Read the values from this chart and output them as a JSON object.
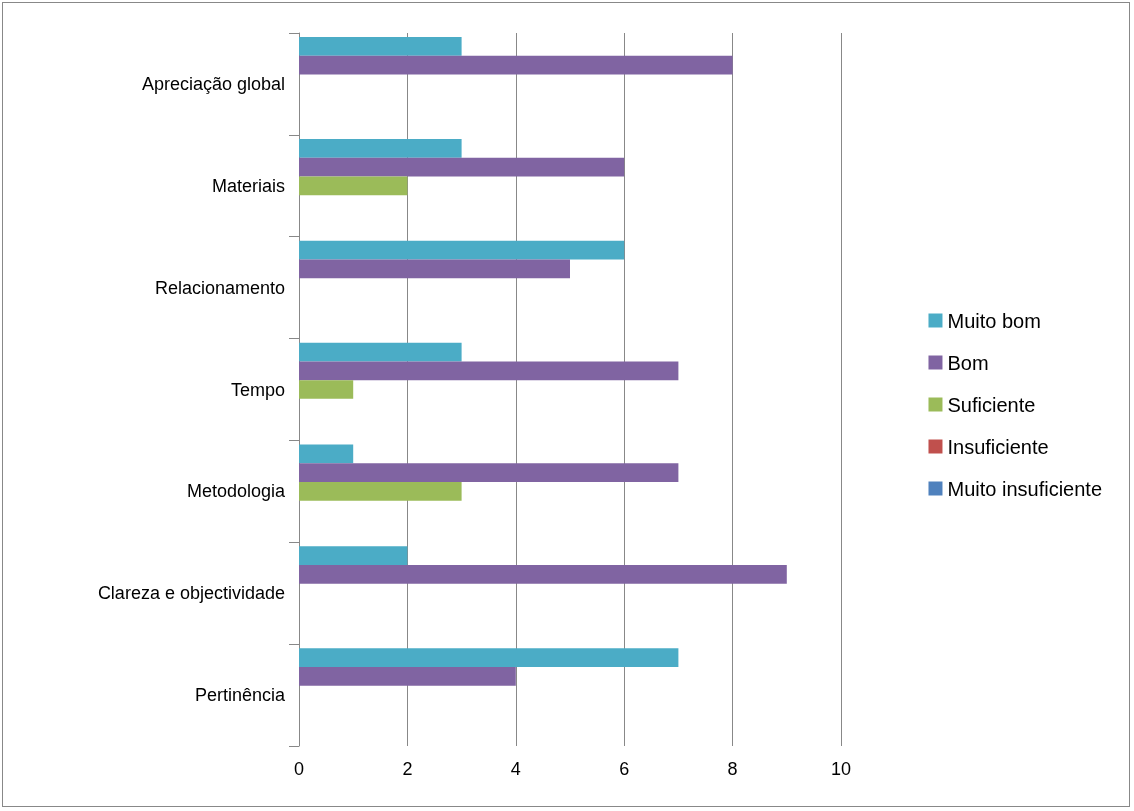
{
  "chart_data": {
    "type": "bar",
    "orientation": "horizontal",
    "categories": [
      "Apreciação global",
      "Materiais",
      "Relacionamento",
      "Tempo",
      "Metodologia",
      "Clareza e objectividade",
      "Pertinência"
    ],
    "series": [
      {
        "name": "Muito bom",
        "color": "#4bacc6",
        "values": [
          3,
          3,
          6,
          3,
          1,
          2,
          7
        ]
      },
      {
        "name": "Bom",
        "color": "#8064a2",
        "values": [
          8,
          6,
          5,
          7,
          7,
          9,
          4
        ]
      },
      {
        "name": "Suficiente",
        "color": "#9bbb59",
        "values": [
          0,
          2,
          0,
          1,
          3,
          0,
          0
        ]
      },
      {
        "name": "Insuficiente",
        "color": "#c0504d",
        "values": [
          0,
          0,
          0,
          0,
          0,
          0,
          0
        ]
      },
      {
        "name": "Muito insuficiente",
        "color": "#4f81bd",
        "values": [
          0,
          0,
          0,
          0,
          0,
          0,
          0
        ]
      }
    ],
    "xlim": [
      0,
      10
    ],
    "xticks": [
      0,
      2,
      4,
      6,
      8,
      10
    ],
    "grid": "x",
    "legend": "right"
  }
}
